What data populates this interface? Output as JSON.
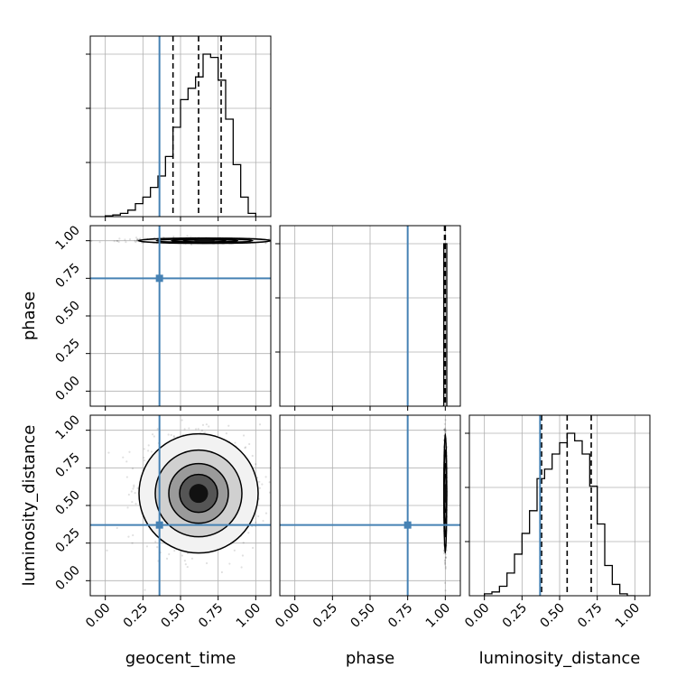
{
  "chart_data": {
    "type": "corner",
    "parameters": [
      "geocent_time",
      "phase",
      "luminosity_distance"
    ],
    "tick_values": [
      0.0,
      0.25,
      0.5,
      0.75,
      1.0
    ],
    "tick_labels": [
      "0.00",
      "0.25",
      "0.50",
      "0.75",
      "1.00"
    ],
    "axis_range": [
      -0.1,
      1.1
    ],
    "grid": true,
    "truths": {
      "geocent_time": 0.36,
      "phase": 0.75,
      "luminosity_distance": 0.37
    },
    "truth_color": "#4682b4",
    "line_color": "#000000",
    "quantiles": {
      "geocent_time": [
        0.45,
        0.62,
        0.77
      ],
      "phase": [
        0.995,
        1.0
      ],
      "luminosity_distance": [
        0.38,
        0.55,
        0.71
      ]
    },
    "histograms": {
      "geocent_time": {
        "bin_edges": [
          0.0,
          0.05,
          0.1,
          0.15,
          0.2,
          0.25,
          0.3,
          0.35,
          0.4,
          0.45,
          0.5,
          0.55,
          0.6,
          0.65,
          0.7,
          0.75,
          0.8,
          0.85,
          0.9,
          0.95,
          1.0
        ],
        "counts": [
          0.005,
          0.01,
          0.02,
          0.04,
          0.08,
          0.12,
          0.18,
          0.25,
          0.37,
          0.55,
          0.72,
          0.79,
          0.86,
          1.0,
          0.98,
          0.84,
          0.6,
          0.32,
          0.12,
          0.02
        ]
      },
      "phase": {
        "bin_edges": [
          0.98,
          0.99,
          1.0,
          1.01
        ],
        "counts": [
          0.0,
          1.0,
          1.0
        ]
      },
      "luminosity_distance": {
        "bin_edges": [
          0.0,
          0.05,
          0.1,
          0.15,
          0.2,
          0.25,
          0.3,
          0.35,
          0.4,
          0.45,
          0.5,
          0.55,
          0.6,
          0.65,
          0.7,
          0.75,
          0.8,
          0.85,
          0.9,
          0.95,
          1.0
        ],
        "counts": [
          0.01,
          0.02,
          0.05,
          0.12,
          0.22,
          0.33,
          0.45,
          0.62,
          0.67,
          0.75,
          0.81,
          0.86,
          0.82,
          0.75,
          0.58,
          0.38,
          0.16,
          0.06,
          0.01,
          0.0
        ]
      }
    },
    "joint": {
      "geocent_time__phase": {
        "center": [
          0.66,
          1.0
        ],
        "spread": [
          0.2,
          0.008
        ]
      },
      "geocent_time__luminosity_distance": {
        "center": [
          0.62,
          0.58
        ],
        "spread": [
          0.18,
          0.18
        ]
      },
      "phase__luminosity_distance": {
        "center": [
          1.0,
          0.58
        ],
        "spread": [
          0.004,
          0.18
        ]
      }
    }
  }
}
